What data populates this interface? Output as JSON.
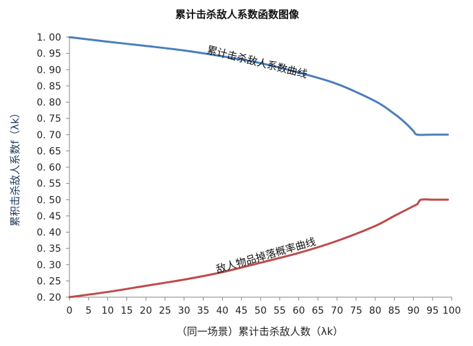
{
  "chart_data": {
    "type": "line",
    "title": "累计击杀敌人系数函数图像",
    "xlabel": "（同一场景）累计击杀敌人数（λk）",
    "ylabel": "累积击杀敌人系数f（λk）",
    "xlim": [
      0,
      100
    ],
    "ylim": [
      0.2,
      1.0
    ],
    "grid": false,
    "xticks": [
      0,
      5,
      10,
      15,
      20,
      25,
      30,
      35,
      40,
      45,
      50,
      55,
      60,
      65,
      70,
      75,
      80,
      85,
      90,
      95,
      100
    ],
    "yticks": [
      0.2,
      0.25,
      0.3,
      0.35,
      0.4,
      0.45,
      0.5,
      0.55,
      0.6,
      0.65,
      0.7,
      0.75,
      0.8,
      0.85,
      0.9,
      0.95,
      1.0
    ],
    "ytick_labels": [
      "0. 20",
      "0. 25",
      "0. 30",
      "0. 35",
      "0. 40",
      "0. 45",
      "0. 50",
      "0. 55",
      "0. 60",
      "0. 65",
      "0. 70",
      "0. 75",
      "0. 80",
      "0. 85",
      "0. 90",
      "0. 95",
      "1. 00"
    ],
    "series": [
      {
        "name": "累计击杀敌人系数曲线",
        "color": "#4a7ebb",
        "x": [
          0,
          10,
          20,
          30,
          40,
          50,
          60,
          70,
          80,
          85,
          88,
          90,
          91,
          95,
          99
        ],
        "y": [
          1.0,
          0.986,
          0.973,
          0.959,
          0.941,
          0.92,
          0.891,
          0.856,
          0.803,
          0.764,
          0.735,
          0.711,
          0.7,
          0.7,
          0.7
        ]
      },
      {
        "name": "敌人物品掉落概率曲线",
        "color": "#be4b48",
        "x": [
          0,
          10,
          20,
          30,
          40,
          50,
          60,
          70,
          80,
          85,
          90,
          91,
          92,
          95,
          99
        ],
        "y": [
          0.2,
          0.216,
          0.235,
          0.254,
          0.277,
          0.306,
          0.336,
          0.373,
          0.419,
          0.45,
          0.48,
          0.486,
          0.5,
          0.5,
          0.5
        ]
      }
    ]
  }
}
